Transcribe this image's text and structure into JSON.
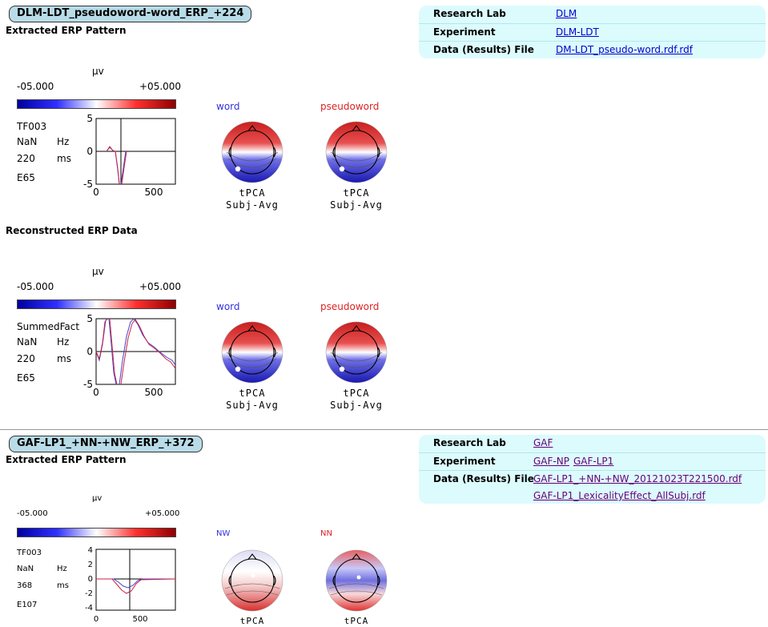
{
  "section1": {
    "pill": "DLM-LDT_pseudoword-word_ERP_+224",
    "info": {
      "research_lab_label": "Research Lab",
      "research_lab": "DLM",
      "experiment_label": "Experiment",
      "experiment": "DLM-LDT",
      "data_file_label": "Data (Results) File",
      "data_file": "DM-LDT_pseudo-word.rdf.rdf"
    },
    "extracted": {
      "title": "Extracted ERP Pattern",
      "unit": "µv",
      "scale_min": "-05.000",
      "scale_max": "+05.000",
      "factor": "TF003",
      "hz_value": "NaN",
      "hz_unit": "Hz",
      "ms_value": "220",
      "ms_unit": "ms",
      "electrode": "E65",
      "y_ticks": [
        "5",
        "0",
        "-5"
      ],
      "x_ticks": [
        "0",
        "500"
      ],
      "maps": [
        {
          "name": "word",
          "color": "#3333dd"
        },
        {
          "name": "pseudoword",
          "color": "#dd2222"
        }
      ],
      "map_caption_1": "tPCA",
      "map_caption_2": "Subj-Avg"
    },
    "reconstructed": {
      "title": "Reconstructed ERP Data",
      "unit": "µv",
      "scale_min": "-05.000",
      "scale_max": "+05.000",
      "factor": "SummedFact",
      "hz_value": "NaN",
      "hz_unit": "Hz",
      "ms_value": "220",
      "ms_unit": "ms",
      "electrode": "E65",
      "y_ticks": [
        "5",
        "0",
        "-5"
      ],
      "x_ticks": [
        "0",
        "500"
      ],
      "maps": [
        {
          "name": "word",
          "color": "#3333dd"
        },
        {
          "name": "pseudoword",
          "color": "#dd2222"
        }
      ],
      "map_caption_1": "tPCA",
      "map_caption_2": "Subj-Avg"
    }
  },
  "section2": {
    "pill": "GAF-LP1_+NN-+NW_ERP_+372",
    "info": {
      "research_lab_label": "Research Lab",
      "research_lab": "GAF",
      "experiment_label": "Experiment",
      "experiment_1": "GAF-NP",
      "experiment_2": "GAF-LP1",
      "data_file_label": "Data (Results) File",
      "data_file_1": "GAF-LP1_+NN-+NW_20121023T221500.rdf",
      "data_file_2": "GAF-LP1_LexicalityEffect_AllSubj.rdf"
    },
    "extracted": {
      "title": "Extracted ERP Pattern",
      "unit": "µv",
      "scale_min": "-05.000",
      "scale_max": "+05.000",
      "factor": "TF003",
      "hz_value": "NaN",
      "hz_unit": "Hz",
      "ms_value": "368",
      "ms_unit": "ms",
      "electrode": "E107",
      "y_ticks": [
        "4",
        "2",
        "0",
        "-2",
        "-4"
      ],
      "x_ticks": [
        "0",
        "500"
      ],
      "maps": [
        {
          "name": "NW",
          "color": "#3333dd"
        },
        {
          "name": "NN",
          "color": "#dd2222"
        }
      ],
      "map_caption_1": "tPCA"
    }
  }
}
